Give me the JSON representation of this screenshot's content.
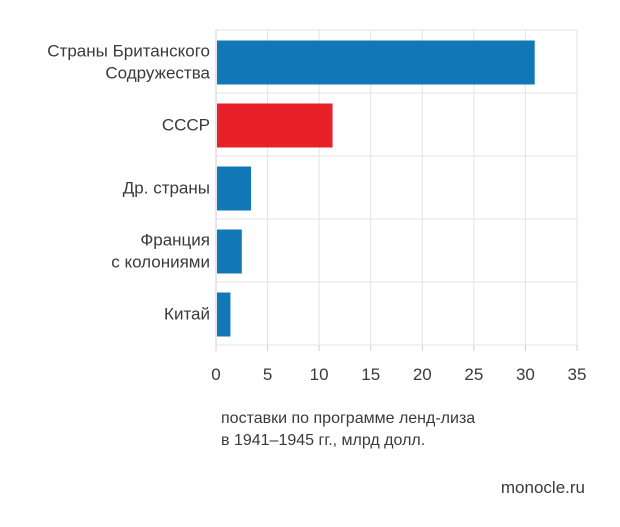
{
  "chart_data": {
    "type": "bar",
    "orientation": "horizontal",
    "categories": [
      [
        "Страны Британского",
        "Содружества"
      ],
      [
        "СССР"
      ],
      [
        "Др. страны"
      ],
      [
        "Франция",
        "с колониями"
      ],
      [
        "Китай"
      ]
    ],
    "values": [
      30.9,
      11.3,
      3.4,
      2.5,
      1.4
    ],
    "bar_colors": [
      "#1277b6",
      "#e8202a",
      "#1277b6",
      "#1277b6",
      "#1277b6"
    ],
    "xlim": [
      0,
      35
    ],
    "xticks": [
      0,
      5,
      10,
      15,
      20,
      25,
      30,
      35
    ],
    "grid": "vertical",
    "colors": {
      "default_bar": "#1277b6",
      "highlight_bar": "#e8202a",
      "grid": "#e3e3e3",
      "axis": "#cfcfcf",
      "text": "#3a3a3a"
    }
  },
  "caption": {
    "line1": "поставки по программе ленд-лиза",
    "line2": "в 1941–1945 гг., млрд долл."
  },
  "source": "monocle.ru"
}
